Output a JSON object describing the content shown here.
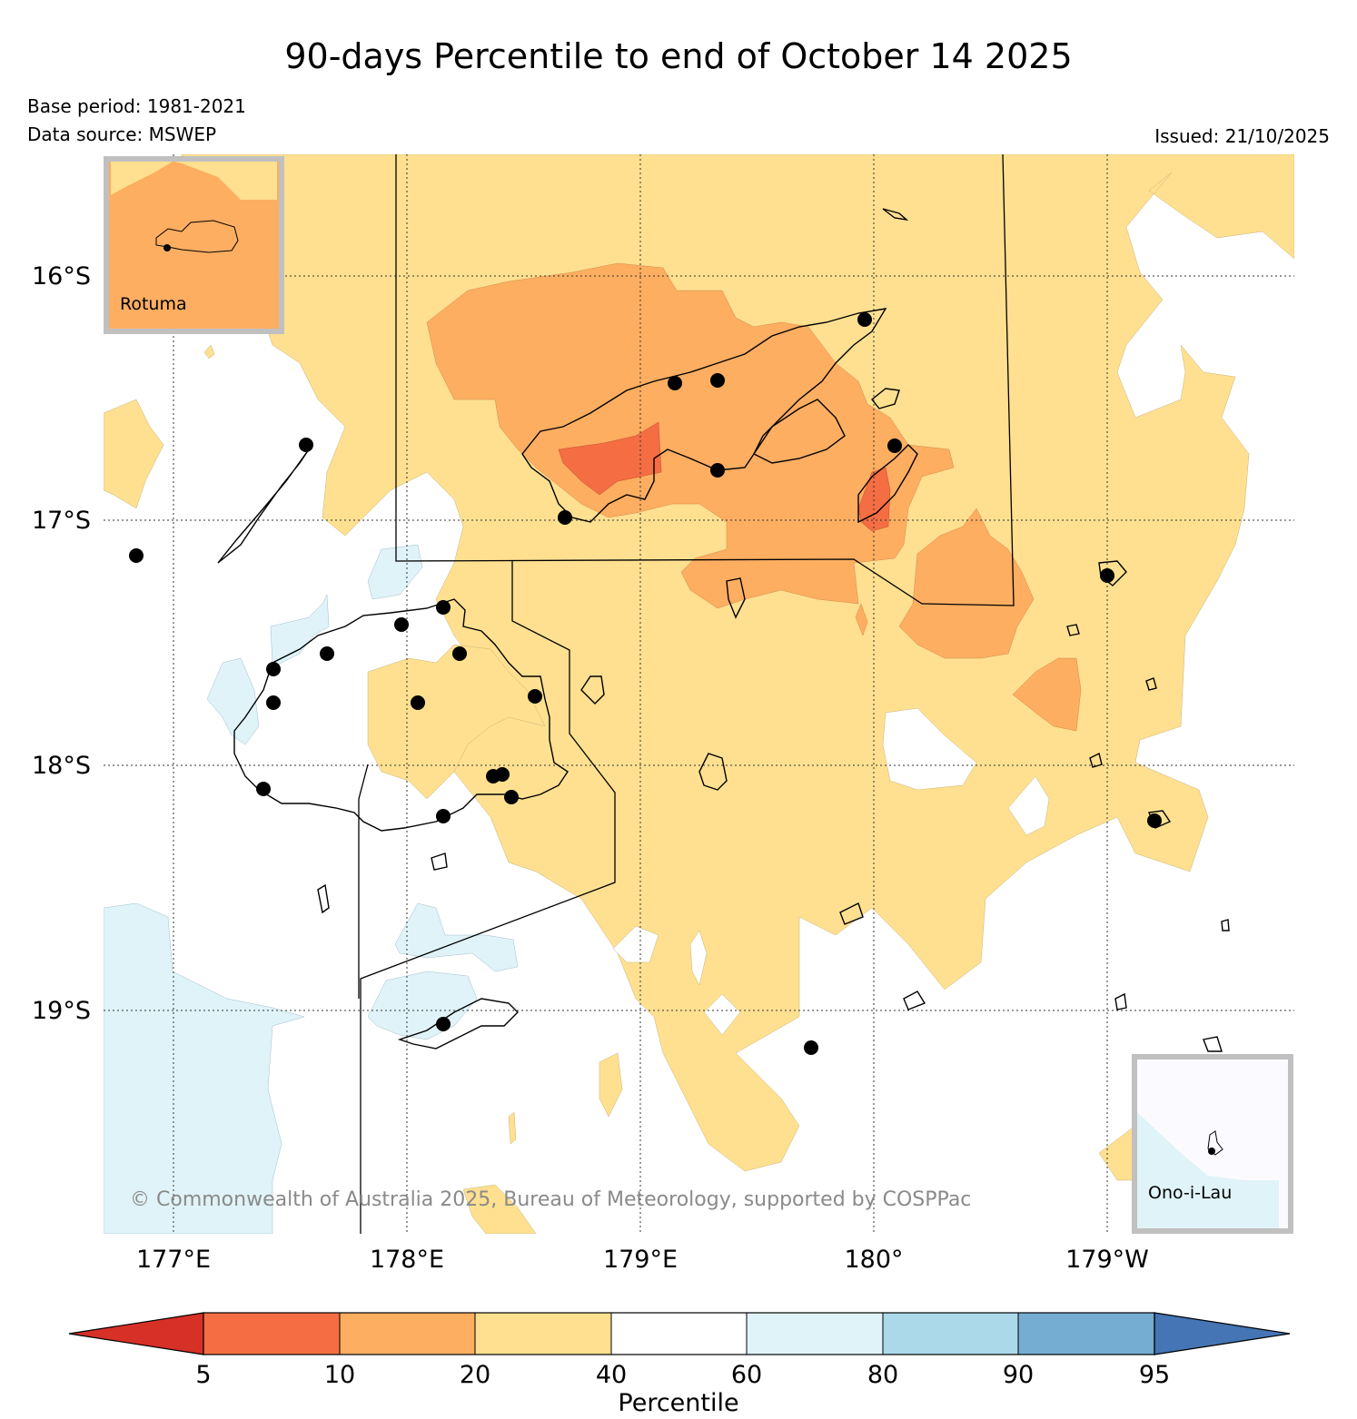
{
  "title": "90-days Percentile to end of October 14 2025",
  "base_period": "Base period: 1981-2021",
  "data_source": "Data source: MSWEP",
  "issued": "Issued: 21/10/2025",
  "copyright": "© Commonwealth of Australia 2025, Bureau of Meteorology, supported by COSPPac",
  "lat_labels": [
    "16°S",
    "17°S",
    "18°S",
    "19°S"
  ],
  "lon_labels": [
    "177°E",
    "178°E",
    "179°E",
    "180°",
    "179°W"
  ],
  "insets": {
    "rotuma": "Rotuma",
    "ono": "Ono-i-Lau"
  },
  "colorbar": {
    "title": "Percentile",
    "ticks": [
      "5",
      "10",
      "20",
      "40",
      "60",
      "80",
      "90",
      "95"
    ],
    "colors": {
      "under": "#d73027",
      "b5_10": "#f46d43",
      "b10_20": "#fdae61",
      "b20_40": "#fee090",
      "b40_60": "#ffffff",
      "b60_80": "#e0f3f8",
      "b80_90": "#abd9e9",
      "b90_95": "#74add1",
      "over": "#4575b4"
    }
  }
}
